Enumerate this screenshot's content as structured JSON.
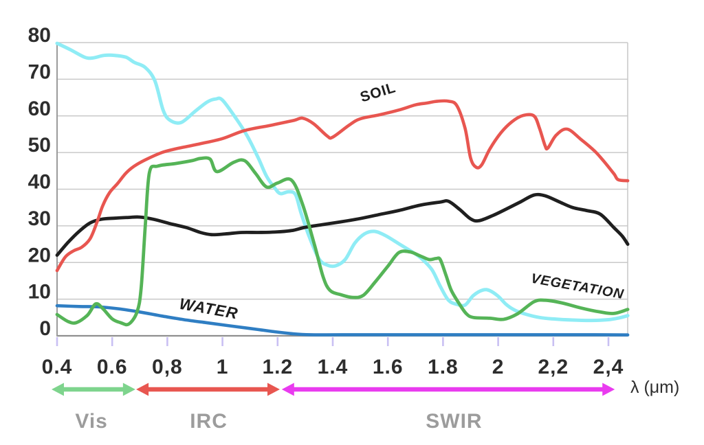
{
  "chart_data": {
    "type": "line",
    "title": "",
    "xlabel": "λ (μm)",
    "ylabel": "",
    "xlim": [
      0.4,
      2.47
    ],
    "ylim": [
      0,
      80
    ],
    "grid": "horizontal",
    "legend_position": "none",
    "y_ticks": [
      0,
      10,
      20,
      30,
      40,
      50,
      60,
      70,
      80
    ],
    "y_tick_labels": [
      "0",
      "10",
      "20",
      "30",
      "40",
      "50",
      "60",
      "70",
      "80"
    ],
    "x_ticks": [
      0.4,
      0.6,
      0.8,
      1.0,
      1.2,
      1.4,
      1.6,
      1.8,
      2.0,
      2.2,
      2.4
    ],
    "x_tick_labels": [
      "0.4",
      "0.6",
      "0,8",
      "1",
      "1.2",
      "1.4",
      "1.6",
      "1.8",
      "2",
      "2,2",
      "2,4"
    ],
    "series": [
      {
        "name": "cyan-unlabeled-curve",
        "label": "",
        "color": "#8FECF5",
        "stroke_width": 5,
        "points": [
          [
            0.4,
            79.8
          ],
          [
            0.45,
            78.0
          ],
          [
            0.5,
            76.0
          ],
          [
            0.53,
            75.8
          ],
          [
            0.57,
            76.5
          ],
          [
            0.61,
            76.5
          ],
          [
            0.65,
            76.0
          ],
          [
            0.68,
            74.6
          ],
          [
            0.72,
            73.2
          ],
          [
            0.755,
            69.5
          ],
          [
            0.785,
            61.5
          ],
          [
            0.81,
            58.8
          ],
          [
            0.85,
            58.2
          ],
          [
            0.9,
            61.2
          ],
          [
            0.945,
            63.8
          ],
          [
            0.975,
            64.6
          ],
          [
            1.0,
            64.3
          ],
          [
            1.05,
            59.2
          ],
          [
            1.09,
            54.5
          ],
          [
            1.13,
            48.5
          ],
          [
            1.16,
            43.5
          ],
          [
            1.19,
            40.3
          ],
          [
            1.21,
            38.8
          ],
          [
            1.24,
            39.3
          ],
          [
            1.265,
            38.5
          ],
          [
            1.285,
            33.5
          ],
          [
            1.315,
            27.0
          ],
          [
            1.35,
            21.0
          ],
          [
            1.38,
            19.3
          ],
          [
            1.41,
            19.1
          ],
          [
            1.445,
            20.8
          ],
          [
            1.48,
            25.3
          ],
          [
            1.515,
            27.8
          ],
          [
            1.55,
            28.5
          ],
          [
            1.59,
            27.4
          ],
          [
            1.64,
            25.1
          ],
          [
            1.69,
            22.8
          ],
          [
            1.72,
            21.2
          ],
          [
            1.76,
            18.0
          ],
          [
            1.79,
            13.5
          ],
          [
            1.82,
            9.7
          ],
          [
            1.85,
            8.6
          ],
          [
            1.88,
            8.4
          ],
          [
            1.91,
            11.0
          ],
          [
            1.945,
            12.5
          ],
          [
            1.97,
            12.3
          ],
          [
            2.0,
            10.8
          ],
          [
            2.03,
            8.5
          ],
          [
            2.06,
            7.0
          ],
          [
            2.1,
            5.9
          ],
          [
            2.15,
            5.0
          ],
          [
            2.2,
            4.6
          ],
          [
            2.27,
            4.3
          ],
          [
            2.34,
            4.2
          ],
          [
            2.4,
            4.4
          ],
          [
            2.44,
            4.9
          ],
          [
            2.47,
            5.5
          ]
        ]
      },
      {
        "name": "water",
        "label": "WATER",
        "color": "#2F7EC3",
        "stroke_width": 4.6,
        "points": [
          [
            0.4,
            8.2
          ],
          [
            0.48,
            8.0
          ],
          [
            0.55,
            7.9
          ],
          [
            0.62,
            7.4
          ],
          [
            0.7,
            6.5
          ],
          [
            0.78,
            5.4
          ],
          [
            0.86,
            4.4
          ],
          [
            0.94,
            3.6
          ],
          [
            1.02,
            2.8
          ],
          [
            1.1,
            2.0
          ],
          [
            1.18,
            1.2
          ],
          [
            1.25,
            0.6
          ],
          [
            1.32,
            0.3
          ],
          [
            1.5,
            0.3
          ],
          [
            1.7,
            0.3
          ],
          [
            1.9,
            0.3
          ],
          [
            2.1,
            0.3
          ],
          [
            2.3,
            0.3
          ],
          [
            2.47,
            0.25
          ]
        ]
      },
      {
        "name": "black-unlabeled-curve",
        "label": "",
        "color": "#1F1F1F",
        "stroke_width": 4.8,
        "points": [
          [
            0.4,
            22.0
          ],
          [
            0.44,
            25.5
          ],
          [
            0.48,
            28.5
          ],
          [
            0.52,
            30.8
          ],
          [
            0.56,
            31.8
          ],
          [
            0.61,
            32.1
          ],
          [
            0.66,
            32.3
          ],
          [
            0.7,
            32.4
          ],
          [
            0.75,
            31.8
          ],
          [
            0.81,
            30.6
          ],
          [
            0.87,
            29.5
          ],
          [
            0.92,
            28.2
          ],
          [
            0.96,
            27.6
          ],
          [
            1.01,
            27.8
          ],
          [
            1.07,
            28.2
          ],
          [
            1.13,
            28.2
          ],
          [
            1.19,
            28.3
          ],
          [
            1.25,
            28.7
          ],
          [
            1.3,
            29.6
          ],
          [
            1.36,
            30.3
          ],
          [
            1.43,
            31.1
          ],
          [
            1.5,
            32.0
          ],
          [
            1.57,
            33.1
          ],
          [
            1.64,
            34.2
          ],
          [
            1.72,
            35.7
          ],
          [
            1.79,
            36.5
          ],
          [
            1.82,
            36.7
          ],
          [
            1.86,
            34.5
          ],
          [
            1.9,
            31.9
          ],
          [
            1.93,
            31.4
          ],
          [
            1.98,
            32.8
          ],
          [
            2.03,
            34.6
          ],
          [
            2.08,
            36.5
          ],
          [
            2.13,
            38.4
          ],
          [
            2.17,
            38.2
          ],
          [
            2.22,
            36.6
          ],
          [
            2.27,
            35.0
          ],
          [
            2.32,
            34.2
          ],
          [
            2.37,
            33.2
          ],
          [
            2.42,
            29.5
          ],
          [
            2.45,
            27.2
          ],
          [
            2.47,
            25.0
          ]
        ]
      },
      {
        "name": "soil",
        "label": "SOIL",
        "color": "#E85650",
        "stroke_width": 4.6,
        "points": [
          [
            0.4,
            17.8
          ],
          [
            0.43,
            21.5
          ],
          [
            0.46,
            23.2
          ],
          [
            0.49,
            24.2
          ],
          [
            0.52,
            26.5
          ],
          [
            0.545,
            31.0
          ],
          [
            0.565,
            35.4
          ],
          [
            0.59,
            39.0
          ],
          [
            0.62,
            41.6
          ],
          [
            0.65,
            44.4
          ],
          [
            0.68,
            46.3
          ],
          [
            0.72,
            48.0
          ],
          [
            0.78,
            50.0
          ],
          [
            0.83,
            51.0
          ],
          [
            0.92,
            52.4
          ],
          [
            1.0,
            53.8
          ],
          [
            1.08,
            56.0
          ],
          [
            1.18,
            57.5
          ],
          [
            1.26,
            58.8
          ],
          [
            1.29,
            59.4
          ],
          [
            1.33,
            57.9
          ],
          [
            1.38,
            54.5
          ],
          [
            1.4,
            54.2
          ],
          [
            1.46,
            57.5
          ],
          [
            1.5,
            59.2
          ],
          [
            1.57,
            60.3
          ],
          [
            1.64,
            61.6
          ],
          [
            1.7,
            63.0
          ],
          [
            1.74,
            63.5
          ],
          [
            1.78,
            64.0
          ],
          [
            1.82,
            64.0
          ],
          [
            1.85,
            62.8
          ],
          [
            1.88,
            56.6
          ],
          [
            1.9,
            48.5
          ],
          [
            1.92,
            46.0
          ],
          [
            1.94,
            46.6
          ],
          [
            1.97,
            51.0
          ],
          [
            2.01,
            55.4
          ],
          [
            2.05,
            58.4
          ],
          [
            2.09,
            60.1
          ],
          [
            2.13,
            60.0
          ],
          [
            2.15,
            56.6
          ],
          [
            2.17,
            51.9
          ],
          [
            2.18,
            51.2
          ],
          [
            2.21,
            54.7
          ],
          [
            2.25,
            56.4
          ],
          [
            2.3,
            53.6
          ],
          [
            2.35,
            50.4
          ],
          [
            2.38,
            47.9
          ],
          [
            2.42,
            44.2
          ],
          [
            2.435,
            42.6
          ],
          [
            2.47,
            42.3
          ]
        ]
      },
      {
        "name": "vegetation",
        "label": "VEGETATION",
        "color": "#55B457",
        "stroke_width": 4.8,
        "points": [
          [
            0.4,
            5.8
          ],
          [
            0.44,
            3.9
          ],
          [
            0.47,
            3.6
          ],
          [
            0.51,
            5.6
          ],
          [
            0.54,
            8.7
          ],
          [
            0.565,
            7.5
          ],
          [
            0.6,
            4.6
          ],
          [
            0.63,
            3.6
          ],
          [
            0.66,
            3.2
          ],
          [
            0.69,
            6.5
          ],
          [
            0.705,
            13.0
          ],
          [
            0.72,
            30.0
          ],
          [
            0.735,
            44.5
          ],
          [
            0.765,
            46.3
          ],
          [
            0.83,
            47.0
          ],
          [
            0.89,
            47.8
          ],
          [
            0.92,
            48.4
          ],
          [
            0.955,
            48.2
          ],
          [
            0.98,
            44.8
          ],
          [
            1.04,
            47.3
          ],
          [
            1.08,
            47.8
          ],
          [
            1.12,
            44.3
          ],
          [
            1.16,
            40.6
          ],
          [
            1.2,
            41.7
          ],
          [
            1.25,
            42.5
          ],
          [
            1.29,
            36.0
          ],
          [
            1.335,
            24.5
          ],
          [
            1.365,
            16.1
          ],
          [
            1.39,
            12.4
          ],
          [
            1.43,
            11.2
          ],
          [
            1.47,
            10.5
          ],
          [
            1.51,
            11.0
          ],
          [
            1.555,
            14.8
          ],
          [
            1.6,
            19.0
          ],
          [
            1.64,
            22.7
          ],
          [
            1.68,
            22.9
          ],
          [
            1.72,
            21.7
          ],
          [
            1.75,
            20.8
          ],
          [
            1.775,
            21.1
          ],
          [
            1.79,
            20.8
          ],
          [
            1.81,
            16.7
          ],
          [
            1.83,
            12.4
          ],
          [
            1.86,
            8.6
          ],
          [
            1.885,
            6.0
          ],
          [
            1.91,
            5.0
          ],
          [
            1.97,
            4.8
          ],
          [
            2.02,
            4.5
          ],
          [
            2.07,
            6.0
          ],
          [
            2.13,
            9.3
          ],
          [
            2.17,
            9.7
          ],
          [
            2.23,
            9.0
          ],
          [
            2.3,
            7.6
          ],
          [
            2.37,
            6.5
          ],
          [
            2.42,
            6.1
          ],
          [
            2.47,
            7.2
          ]
        ]
      }
    ],
    "annotations": [
      {
        "text": "SOIL",
        "x": 1.569,
        "y": 65.2,
        "rotation": -17,
        "italic": false,
        "size": 21
      },
      {
        "text": "WATER",
        "x": 0.947,
        "y": 6.0,
        "rotation": 10,
        "italic": true,
        "size": 23
      },
      {
        "text": "VEGETATION",
        "x": 2.285,
        "y": 12.3,
        "rotation": 10,
        "italic": true,
        "size": 20
      }
    ],
    "bands": [
      {
        "label": "Vis",
        "from": 0.38,
        "to": 0.684,
        "label_x": 0.525,
        "color": "#7ED48D"
      },
      {
        "label": "IRC",
        "from": 0.687,
        "to": 1.208,
        "label_x": 0.95,
        "color": "#E85650"
      },
      {
        "label": "SWIR",
        "from": 1.215,
        "to": 2.423,
        "label_x": 1.84,
        "color": "#E93BEF"
      }
    ],
    "colors": {
      "grid": "#C9C9C9",
      "axis": "#8F8F8F",
      "left_axis": "#9B9B9B",
      "tick_mark": "#C9C0F3",
      "tick_label": "#2D2D2D",
      "band_label": "#9C9C9C",
      "curve_label": "#1E1E1E"
    }
  }
}
